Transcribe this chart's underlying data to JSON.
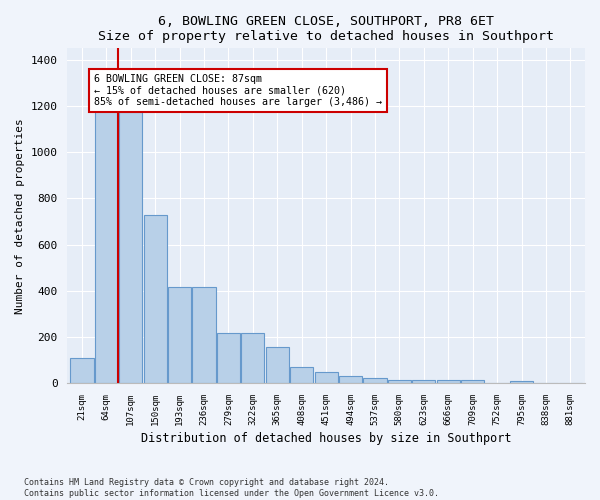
{
  "title": "6, BOWLING GREEN CLOSE, SOUTHPORT, PR8 6ET",
  "subtitle": "Size of property relative to detached houses in Southport",
  "xlabel": "Distribution of detached houses by size in Southport",
  "ylabel": "Number of detached properties",
  "categories": [
    "21sqm",
    "64sqm",
    "107sqm",
    "150sqm",
    "193sqm",
    "236sqm",
    "279sqm",
    "322sqm",
    "365sqm",
    "408sqm",
    "451sqm",
    "494sqm",
    "537sqm",
    "580sqm",
    "623sqm",
    "666sqm",
    "709sqm",
    "752sqm",
    "795sqm",
    "838sqm",
    "881sqm"
  ],
  "values": [
    108,
    1185,
    1175,
    730,
    415,
    415,
    215,
    215,
    155,
    68,
    48,
    30,
    22,
    15,
    13,
    13,
    13,
    0,
    10,
    0,
    0
  ],
  "bar_color": "#b8d0e8",
  "bar_edge_color": "#6699cc",
  "vline_color": "#cc0000",
  "annotation_line1": "6 BOWLING GREEN CLOSE: 87sqm",
  "annotation_line2": "← 15% of detached houses are smaller (620)",
  "annotation_line3": "85% of semi-detached houses are larger (3,486) →",
  "annotation_box_color": "#ffffff",
  "annotation_box_edge": "#cc0000",
  "ylim": [
    0,
    1450
  ],
  "yticks": [
    0,
    200,
    400,
    600,
    800,
    1000,
    1200,
    1400
  ],
  "footer": "Contains HM Land Registry data © Crown copyright and database right 2024.\nContains public sector information licensed under the Open Government Licence v3.0.",
  "bg_color": "#f0f4fb",
  "plot_bg_color": "#e6edf7"
}
